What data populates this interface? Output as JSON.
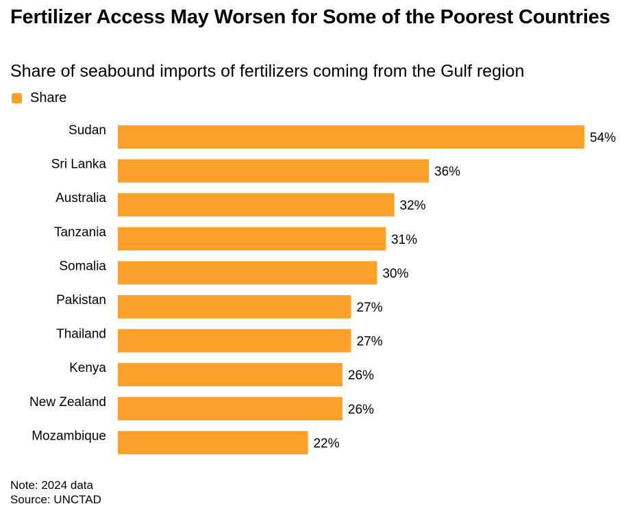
{
  "title": "Fertilizer Access May Worsen for Some of the Poorest Countries",
  "subtitle": "Share of seabound imports of fertilizers coming from the Gulf region",
  "legend": [
    {
      "label": "Share",
      "color": "#fca02c"
    }
  ],
  "note": "Note: 2024 data",
  "source": "Source: UNCTAD",
  "chart_data": {
    "type": "bar",
    "orientation": "horizontal",
    "title": "Fertilizer Access May Worsen for Some of the Poorest Countries",
    "subtitle": "Share of seabound imports of fertilizers coming from the Gulf region",
    "xlabel": "",
    "ylabel": "",
    "categories": [
      "Sudan",
      "Sri Lanka",
      "Australia",
      "Tanzania",
      "Somalia",
      "Pakistan",
      "Thailand",
      "Kenya",
      "New Zealand",
      "Mozambique"
    ],
    "series": [
      {
        "name": "Share",
        "color": "#fca02c",
        "values": [
          54,
          36,
          32,
          31,
          30,
          27,
          27,
          26,
          26,
          22
        ]
      }
    ],
    "data_labels": [
      "54%",
      "36%",
      "32%",
      "31%",
      "30%",
      "27%",
      "27%",
      "26%",
      "26%",
      "22%"
    ],
    "xlim": [
      0,
      54
    ],
    "grid": false,
    "legend_position": "top-left"
  }
}
